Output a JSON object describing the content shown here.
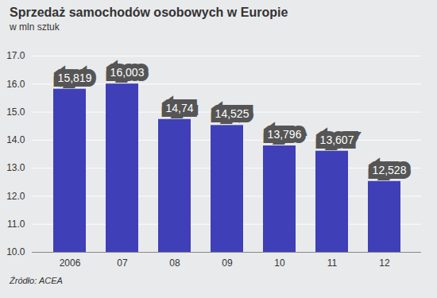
{
  "chart_data": {
    "type": "bar",
    "title": "Sprzedaż samochodów osobowych w Europie",
    "subtitle": "w mln sztuk",
    "source": "Źródło: ACEA",
    "categories": [
      "2006",
      "07",
      "08",
      "09",
      "10",
      "11",
      "12"
    ],
    "values": [
      15.819,
      16.003,
      14.74,
      14.525,
      13.796,
      13.607,
      12.528
    ],
    "value_labels": [
      "15,819",
      "16,003",
      "14,74",
      "14,525",
      "13,796",
      "13,607",
      "12,528"
    ],
    "color": "#3f3fb8",
    "ylim": [
      10,
      17
    ],
    "yticks": [
      10,
      11,
      12,
      13,
      14,
      15,
      16,
      17
    ],
    "grid": true,
    "data_labels": true
  }
}
